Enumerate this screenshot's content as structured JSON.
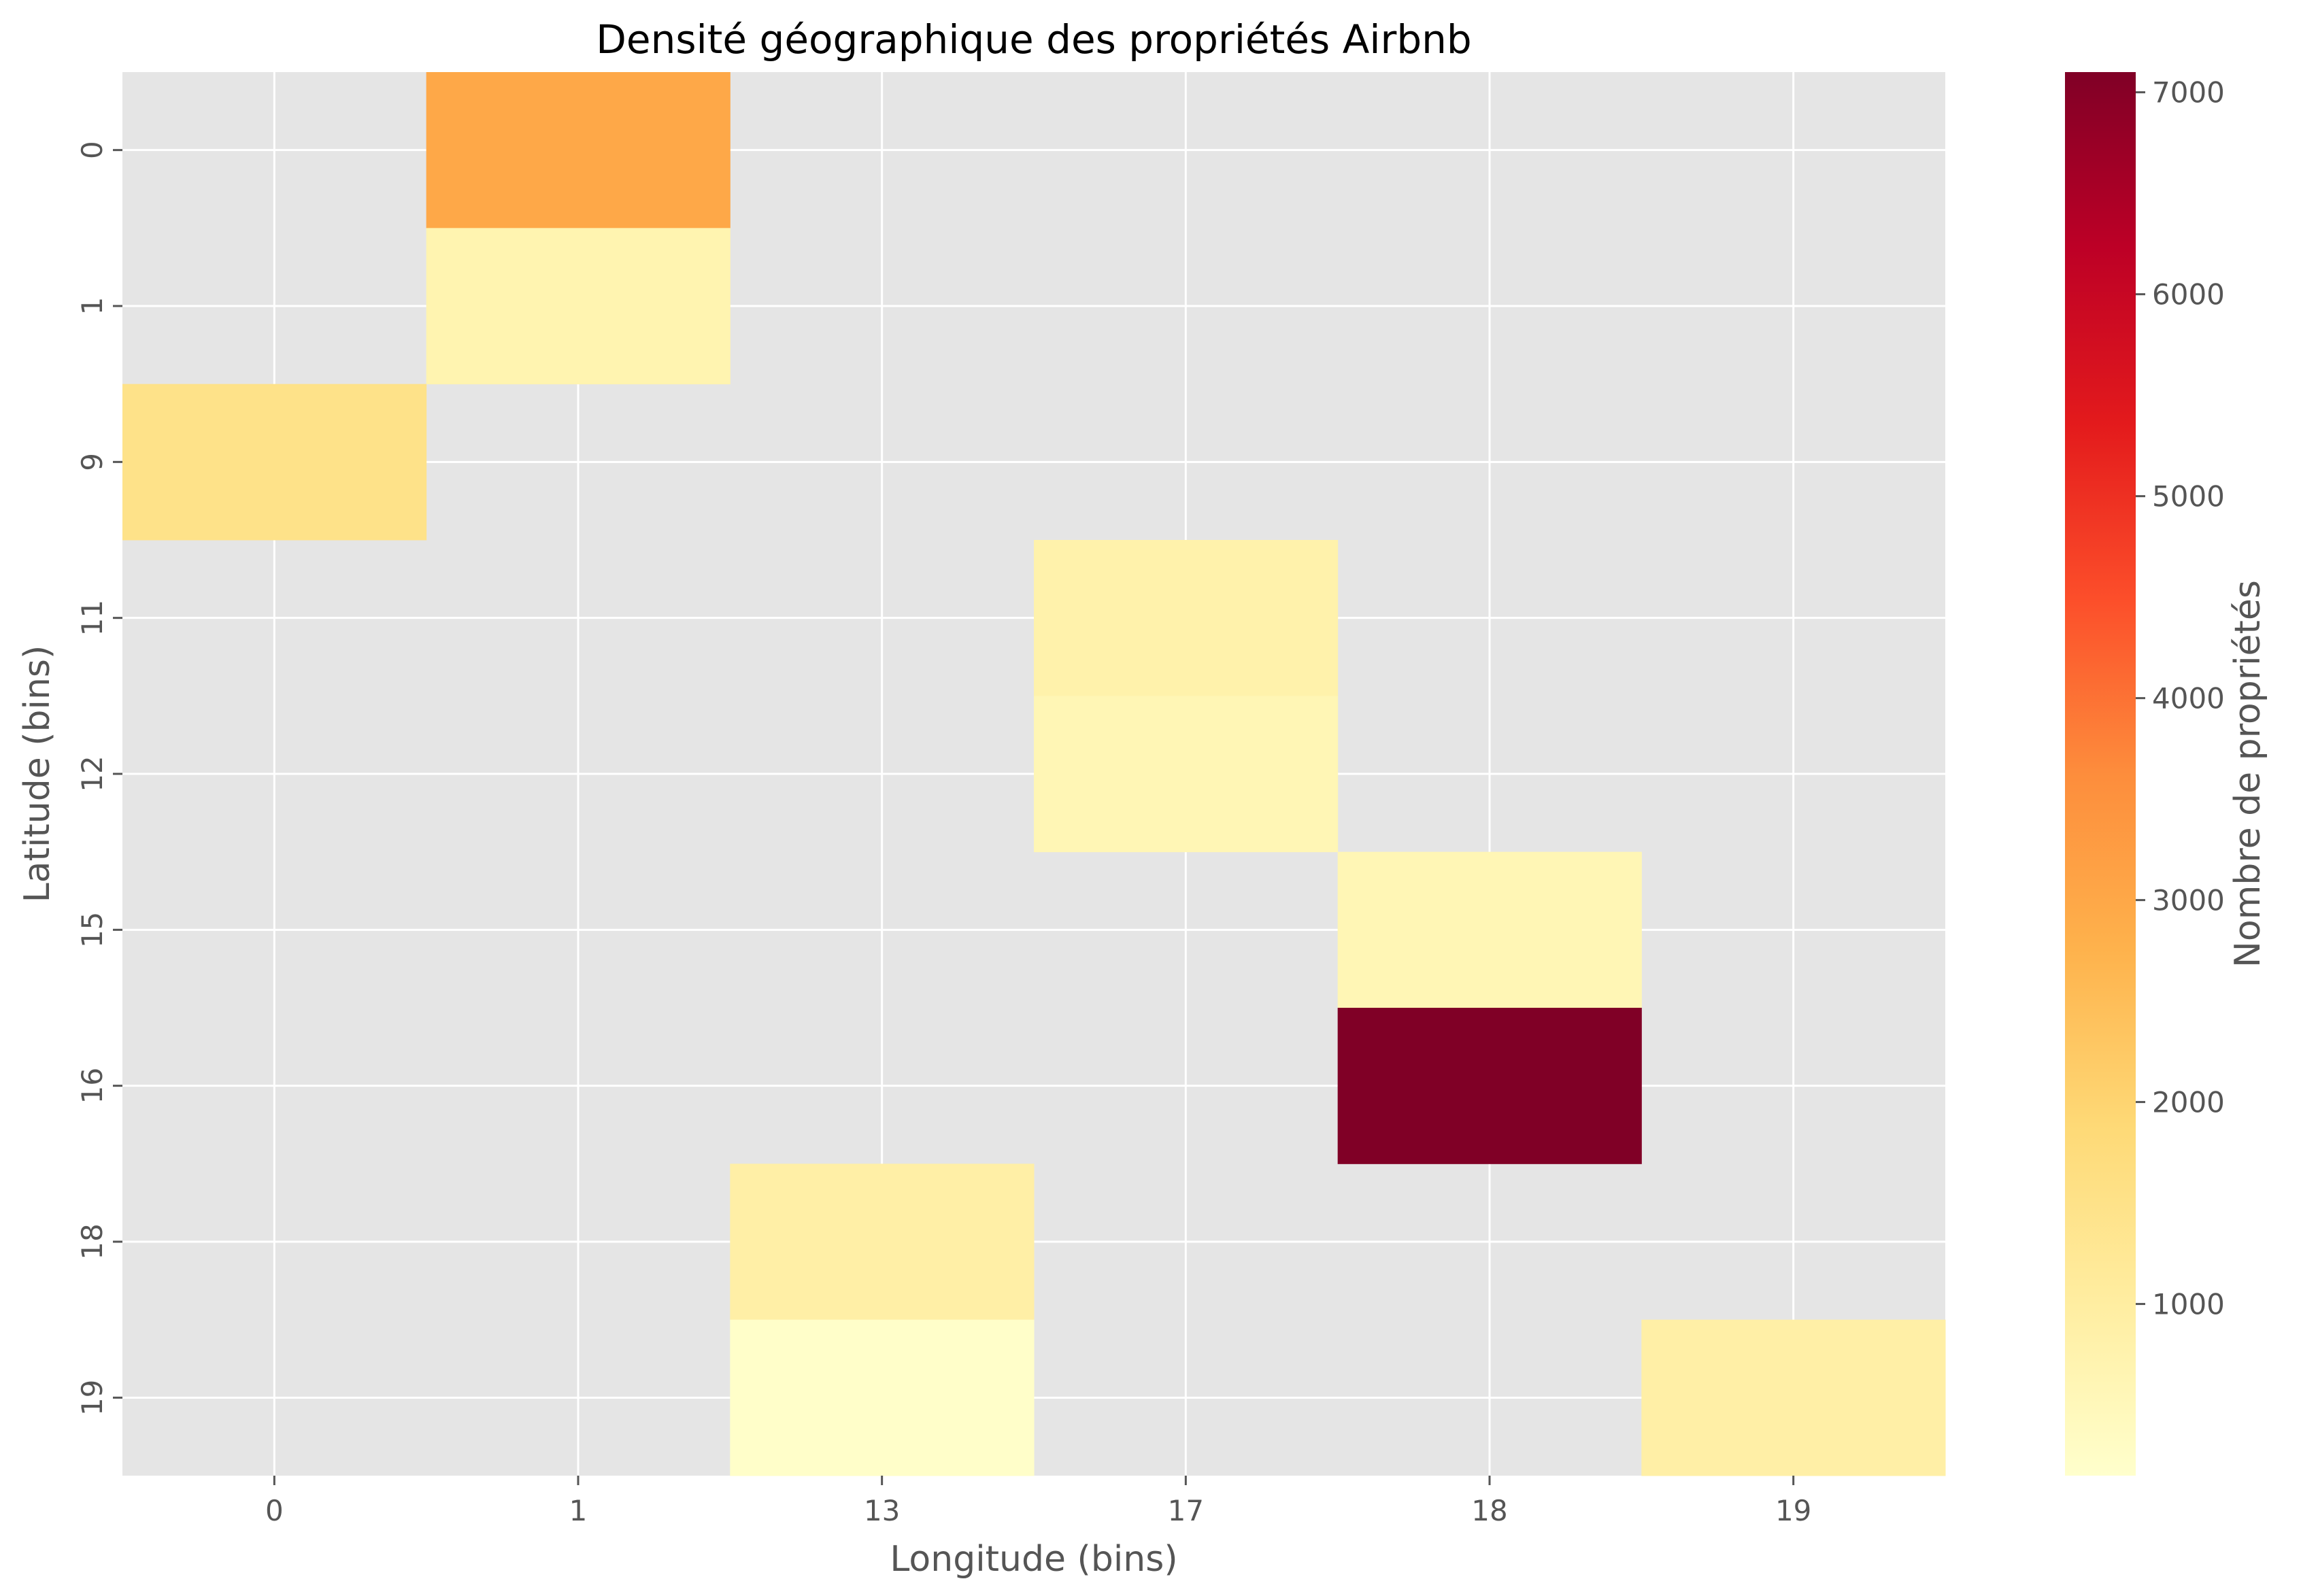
{
  "chart_data": {
    "type": "heatmap",
    "title": "Densité géographique des propriétés Airbnb",
    "xlabel": "Longitude (bins)",
    "ylabel": "Latitude (bins)",
    "x_categories": [
      "0",
      "1",
      "13",
      "17",
      "18",
      "19"
    ],
    "y_categories": [
      "0",
      "1",
      "9",
      "11",
      "12",
      "15",
      "16",
      "18",
      "19"
    ],
    "cells": [
      {
        "x": "1",
        "y": "0",
        "value": 3000
      },
      {
        "x": "1",
        "y": "1",
        "value": 700
      },
      {
        "x": "0",
        "y": "9",
        "value": 1500
      },
      {
        "x": "17",
        "y": "11",
        "value": 800
      },
      {
        "x": "17",
        "y": "12",
        "value": 600
      },
      {
        "x": "18",
        "y": "15",
        "value": 600
      },
      {
        "x": "18",
        "y": "16",
        "value": 7100
      },
      {
        "x": "13",
        "y": "18",
        "value": 900
      },
      {
        "x": "13",
        "y": "19",
        "value": 200
      },
      {
        "x": "19",
        "y": "19",
        "value": 900
      }
    ],
    "colorbar": {
      "label": "Nombre de propriétés",
      "min": 150,
      "max": 7100,
      "ticks": [
        1000,
        2000,
        3000,
        4000,
        5000,
        6000,
        7000
      ],
      "colormap": "YlOrRd"
    },
    "grid": true,
    "missing_color": "#e5e5e5",
    "grid_color": "#ffffff"
  }
}
